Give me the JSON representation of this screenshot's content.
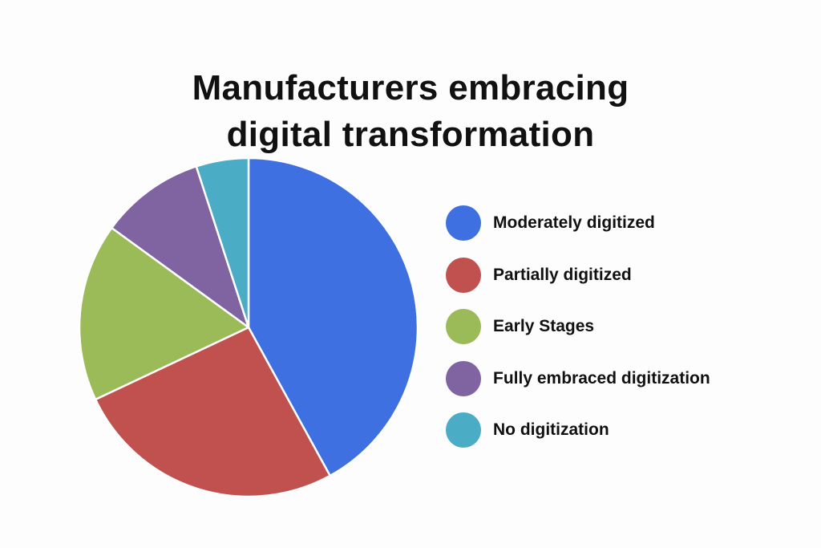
{
  "chart_data": {
    "type": "pie",
    "title_lines": [
      "Manufacturers embracing",
      "digital transformation"
    ],
    "categories": [
      "Moderately digitized",
      "Partially digitized",
      "Early Stages",
      "Fully embraced digitization",
      "No digitization"
    ],
    "values": [
      42,
      26,
      17,
      10,
      5
    ],
    "colors": [
      "#3e70e2",
      "#c0514e",
      "#9bbb59",
      "#8064a2",
      "#4bacc6"
    ],
    "start_angle": "12 o'clock",
    "direction": "clockwise",
    "legend_position": "right"
  }
}
